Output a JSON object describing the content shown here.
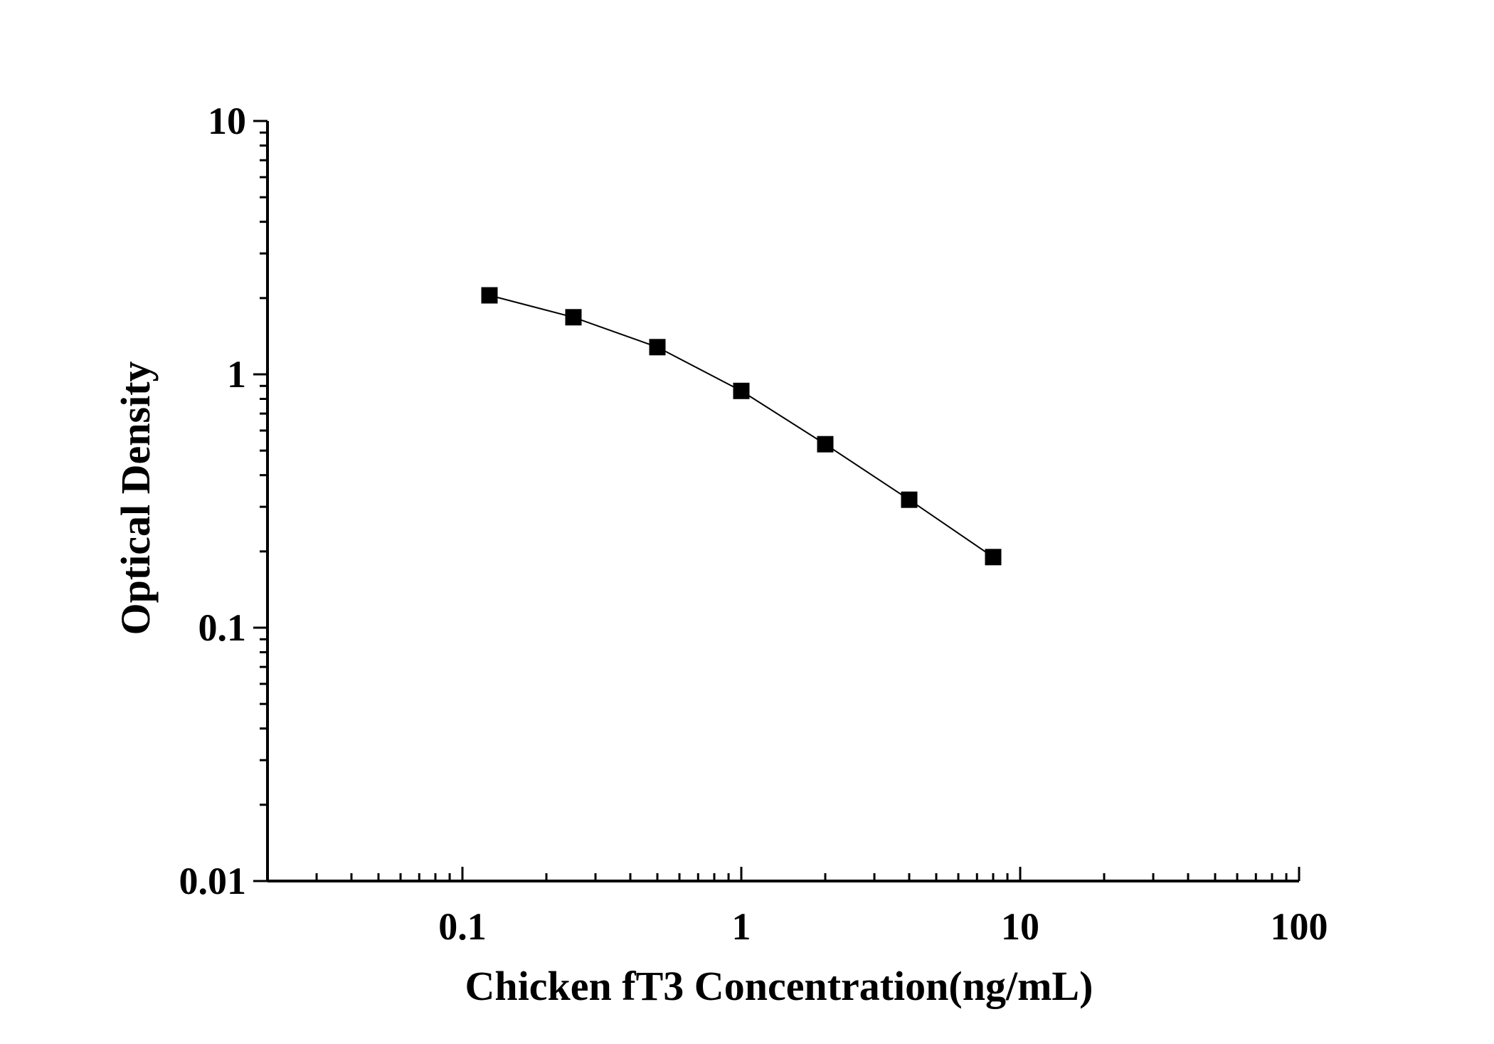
{
  "chart_data": {
    "type": "scatter",
    "xlabel": "Chicken fT3 Concentration(ng/mL)",
    "ylabel": "Optical Density",
    "x_scale": "log",
    "y_scale": "log",
    "xlim": [
      0.02,
      100
    ],
    "ylim": [
      0.01,
      10
    ],
    "x_ticks": [
      "0.1",
      "1",
      "10",
      "100"
    ],
    "y_ticks": [
      "0.01",
      "0.1",
      "1",
      "10"
    ],
    "grid": false,
    "series": [
      {
        "x": [
          0.125,
          0.25,
          0.5,
          1,
          2,
          4,
          8
        ],
        "y": [
          2.05,
          1.68,
          1.28,
          0.86,
          0.53,
          0.32,
          0.19
        ],
        "marker": "square",
        "line": true,
        "color": "#000000"
      }
    ]
  }
}
